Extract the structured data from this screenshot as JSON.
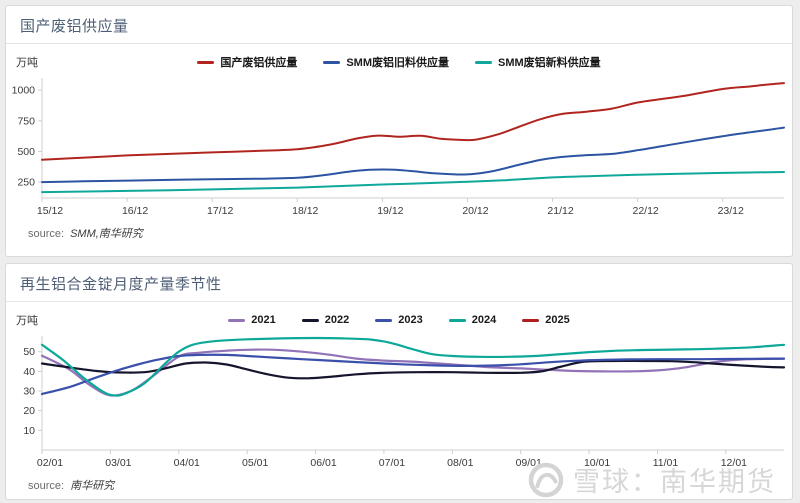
{
  "watermark": {
    "text": "雪球：南华期货",
    "icon": "snowball-logo",
    "color": "#d4d4d4"
  },
  "chart_data": [
    {
      "type": "line",
      "title": "国产废铝供应量",
      "ylabel": "万吨",
      "source_label": "source:",
      "source_value": "SMM,南华研究",
      "legend_position": "top-center",
      "grid": false,
      "xlim": [
        0,
        8.72
      ],
      "ylim": [
        120,
        1100
      ],
      "y_ticks": [
        250,
        500,
        750,
        1000
      ],
      "x_tick_labels": [
        "15/12",
        "16/12",
        "17/12",
        "18/12",
        "19/12",
        "20/12",
        "21/12",
        "22/12",
        "23/12"
      ],
      "x_tick_positions": [
        0,
        1,
        2,
        3,
        4,
        5,
        6,
        7,
        8
      ],
      "series": [
        {
          "name": "国产废铝供应量",
          "color": "#b0261f",
          "points": [
            [
              0,
              432
            ],
            [
              0.5,
              450
            ],
            [
              1,
              468
            ],
            [
              1.5,
              480
            ],
            [
              2,
              492
            ],
            [
              2.5,
              504
            ],
            [
              3,
              518
            ],
            [
              3.4,
              558
            ],
            [
              3.7,
              606
            ],
            [
              3.95,
              630
            ],
            [
              4.2,
              620
            ],
            [
              4.45,
              628
            ],
            [
              4.7,
              603
            ],
            [
              4.95,
              594
            ],
            [
              5.1,
              597
            ],
            [
              5.35,
              638
            ],
            [
              5.6,
              700
            ],
            [
              5.85,
              762
            ],
            [
              6.1,
              805
            ],
            [
              6.4,
              825
            ],
            [
              6.7,
              850
            ],
            [
              7,
              900
            ],
            [
              7.3,
              930
            ],
            [
              7.6,
              960
            ],
            [
              8,
              1010
            ],
            [
              8.3,
              1030
            ],
            [
              8.55,
              1048
            ],
            [
              8.72,
              1058
            ]
          ]
        },
        {
          "name": "SMM废铝旧料供应量",
          "color": "#2d54a3",
          "points": [
            [
              0,
              250
            ],
            [
              0.5,
              256
            ],
            [
              1,
              262
            ],
            [
              1.5,
              268
            ],
            [
              2,
              273
            ],
            [
              2.5,
              277
            ],
            [
              3,
              285
            ],
            [
              3.3,
              305
            ],
            [
              3.6,
              335
            ],
            [
              3.85,
              350
            ],
            [
              4.1,
              352
            ],
            [
              4.35,
              340
            ],
            [
              4.6,
              322
            ],
            [
              4.85,
              313
            ],
            [
              5.05,
              315
            ],
            [
              5.3,
              340
            ],
            [
              5.6,
              390
            ],
            [
              5.85,
              430
            ],
            [
              6.1,
              455
            ],
            [
              6.4,
              470
            ],
            [
              6.7,
              480
            ],
            [
              7,
              510
            ],
            [
              7.3,
              545
            ],
            [
              7.6,
              580
            ],
            [
              8,
              625
            ],
            [
              8.3,
              655
            ],
            [
              8.55,
              678
            ],
            [
              8.72,
              695
            ]
          ]
        },
        {
          "name": "SMM废铝新料供应量",
          "color": "#0fa89a",
          "points": [
            [
              0,
              168
            ],
            [
              1,
              178
            ],
            [
              2,
              190
            ],
            [
              3,
              205
            ],
            [
              4,
              230
            ],
            [
              5,
              252
            ],
            [
              5.5,
              268
            ],
            [
              6,
              288
            ],
            [
              6.5,
              300
            ],
            [
              7,
              310
            ],
            [
              7.5,
              318
            ],
            [
              8,
              325
            ],
            [
              8.72,
              332
            ]
          ]
        }
      ]
    },
    {
      "type": "line",
      "title": "再生铝合金锭月度产量季节性",
      "ylabel": "万吨",
      "source_label": "source:",
      "source_value": "南华研究",
      "legend_position": "top-center",
      "grid": false,
      "xlim": [
        2,
        12.85
      ],
      "ylim": [
        0,
        58
      ],
      "y_ticks": [
        10,
        20,
        30,
        40,
        50
      ],
      "x_tick_labels": [
        "02/01",
        "03/01",
        "04/01",
        "05/01",
        "06/01",
        "07/01",
        "08/01",
        "09/01",
        "10/01",
        "11/01",
        "12/01"
      ],
      "x_tick_positions": [
        2,
        3,
        4,
        5,
        6,
        7,
        8,
        9,
        10,
        11,
        12
      ],
      "series": [
        {
          "name": "2021",
          "color": "#9273b8",
          "points": [
            [
              2,
              48
            ],
            [
              2.4,
              41
            ],
            [
              2.7,
              33
            ],
            [
              3,
              27.8
            ],
            [
              3.3,
              30
            ],
            [
              3.6,
              37
            ],
            [
              4,
              47.5
            ],
            [
              4.3,
              49.5
            ],
            [
              4.7,
              50.5
            ],
            [
              5,
              51
            ],
            [
              5.4,
              51
            ],
            [
              5.8,
              50
            ],
            [
              6.2,
              48.5
            ],
            [
              6.6,
              46.5
            ],
            [
              7,
              45.5
            ],
            [
              7.4,
              45
            ],
            [
              7.8,
              44
            ],
            [
              8.2,
              43
            ],
            [
              8.6,
              42
            ],
            [
              9,
              41.5
            ],
            [
              9.4,
              40.8
            ],
            [
              9.8,
              40.2
            ],
            [
              10.2,
              40
            ],
            [
              10.6,
              40
            ],
            [
              11,
              40.5
            ],
            [
              11.4,
              42
            ],
            [
              11.8,
              44.5
            ],
            [
              12.2,
              46
            ],
            [
              12.85,
              46.5
            ]
          ]
        },
        {
          "name": "2022",
          "color": "#15152e",
          "points": [
            [
              2,
              44
            ],
            [
              2.4,
              42
            ],
            [
              2.8,
              40.2
            ],
            [
              3.1,
              39.5
            ],
            [
              3.5,
              39.6
            ],
            [
              3.8,
              41.5
            ],
            [
              4.1,
              44
            ],
            [
              4.4,
              44.5
            ],
            [
              4.7,
              43.5
            ],
            [
              5,
              41
            ],
            [
              5.3,
              38.5
            ],
            [
              5.6,
              36.8
            ],
            [
              5.9,
              36.5
            ],
            [
              6.2,
              37.2
            ],
            [
              6.6,
              38.5
            ],
            [
              7,
              39.3
            ],
            [
              7.5,
              39.6
            ],
            [
              8,
              39.6
            ],
            [
              8.5,
              39.3
            ],
            [
              9,
              39.3
            ],
            [
              9.3,
              40
            ],
            [
              9.6,
              42.5
            ],
            [
              9.9,
              44.8
            ],
            [
              10.3,
              45.3
            ],
            [
              10.8,
              45.3
            ],
            [
              11.2,
              45.2
            ],
            [
              11.6,
              44.5
            ],
            [
              12,
              43.5
            ],
            [
              12.5,
              42.5
            ],
            [
              12.85,
              42
            ]
          ]
        },
        {
          "name": "2023",
          "color": "#3a50ab",
          "points": [
            [
              2,
              28.5
            ],
            [
              2.4,
              32
            ],
            [
              2.8,
              37
            ],
            [
              3.1,
              40.5
            ],
            [
              3.4,
              43.5
            ],
            [
              3.7,
              46
            ],
            [
              4,
              47.8
            ],
            [
              4.3,
              48.4
            ],
            [
              4.7,
              48.4
            ],
            [
              5,
              47.8
            ],
            [
              5.4,
              47
            ],
            [
              5.8,
              46.2
            ],
            [
              6.2,
              45.5
            ],
            [
              6.6,
              44.7
            ],
            [
              7,
              44
            ],
            [
              7.4,
              43.4
            ],
            [
              7.8,
              43
            ],
            [
              8.2,
              42.8
            ],
            [
              8.6,
              43
            ],
            [
              9,
              43.6
            ],
            [
              9.4,
              44.6
            ],
            [
              9.8,
              45.4
            ],
            [
              10.2,
              45.9
            ],
            [
              10.6,
              46.1
            ],
            [
              11,
              46.2
            ],
            [
              11.5,
              46.2
            ],
            [
              12,
              46.3
            ],
            [
              12.85,
              46.5
            ]
          ]
        },
        {
          "name": "2024",
          "color": "#0ca898",
          "points": [
            [
              2,
              53.5
            ],
            [
              2.3,
              46
            ],
            [
              2.6,
              37
            ],
            [
              2.9,
              29.5
            ],
            [
              3.05,
              27.8
            ],
            [
              3.2,
              28.5
            ],
            [
              3.5,
              34
            ],
            [
              3.8,
              44
            ],
            [
              4,
              50
            ],
            [
              4.2,
              53.5
            ],
            [
              4.5,
              55.3
            ],
            [
              5,
              56.3
            ],
            [
              5.5,
              56.8
            ],
            [
              6,
              57
            ],
            [
              6.4,
              56.8
            ],
            [
              6.8,
              56.2
            ],
            [
              7.1,
              54.5
            ],
            [
              7.4,
              51.5
            ],
            [
              7.7,
              48.8
            ],
            [
              8,
              47.8
            ],
            [
              8.4,
              47.4
            ],
            [
              8.8,
              47.4
            ],
            [
              9.2,
              47.8
            ],
            [
              9.6,
              48.8
            ],
            [
              10,
              49.8
            ],
            [
              10.4,
              50.5
            ],
            [
              10.8,
              50.9
            ],
            [
              11.2,
              51.1
            ],
            [
              11.6,
              51.3
            ],
            [
              12,
              51.7
            ],
            [
              12.4,
              52.3
            ],
            [
              12.85,
              53.5
            ]
          ]
        },
        {
          "name": "2025",
          "color": "#b0201f",
          "points": []
        }
      ]
    }
  ]
}
